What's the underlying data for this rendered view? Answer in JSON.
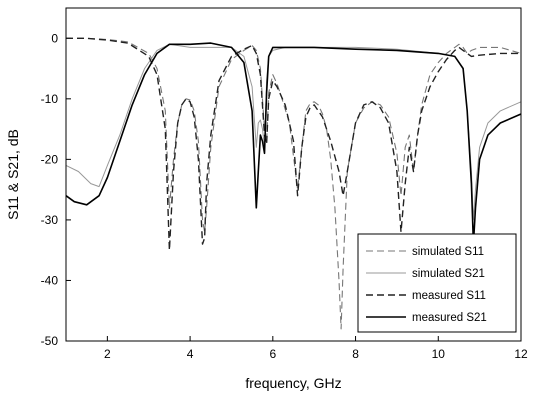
{
  "chart_data": {
    "type": "line",
    "title": "",
    "xlabel": "frequency, GHz",
    "ylabel": "S11 & S21, dB",
    "xlim": [
      1,
      12
    ],
    "ylim": [
      -50,
      5
    ],
    "xticks": [
      2,
      4,
      6,
      8,
      10,
      12
    ],
    "yticks": [
      0,
      -10,
      -20,
      -30,
      -40,
      -50
    ],
    "grid": false,
    "legend_position": "bottom-right",
    "series": [
      {
        "name": "simulated S11",
        "color": "#777777",
        "dash": "dashed",
        "x": [
          1.0,
          1.5,
          2.0,
          2.5,
          3.0,
          3.2,
          3.4,
          3.5,
          3.6,
          3.7,
          3.8,
          3.9,
          4.0,
          4.1,
          4.2,
          4.3,
          4.35,
          4.4,
          4.5,
          4.7,
          5.0,
          5.3,
          5.5,
          5.6,
          5.7,
          5.8,
          5.85,
          5.9,
          6.0,
          6.1,
          6.2,
          6.4,
          6.6,
          6.7,
          6.8,
          6.9,
          7.0,
          7.1,
          7.2,
          7.3,
          7.4,
          7.5,
          7.6,
          7.65,
          7.7,
          7.8,
          8.0,
          8.2,
          8.4,
          8.6,
          8.8,
          9.0,
          9.1,
          9.2,
          9.3,
          9.4,
          9.5,
          9.6,
          9.8,
          10.0,
          10.2,
          10.4,
          10.5,
          10.6,
          10.7,
          10.8,
          11.0,
          11.5,
          12.0
        ],
        "y": [
          0.0,
          0.0,
          -0.2,
          -0.6,
          -2.5,
          -5.0,
          -12.0,
          -28.0,
          -20.0,
          -14.0,
          -11.0,
          -10.0,
          -10.2,
          -12.0,
          -17.0,
          -30.0,
          -32.0,
          -28.0,
          -18.0,
          -8.0,
          -3.5,
          -2.0,
          -1.2,
          -2.0,
          -5.0,
          -15.0,
          -17.0,
          -9.0,
          -6.0,
          -7.5,
          -9.5,
          -14.0,
          -25.0,
          -18.0,
          -12.0,
          -10.8,
          -10.5,
          -11.0,
          -12.5,
          -15.0,
          -20.0,
          -28.0,
          -40.0,
          -48.0,
          -38.0,
          -22.0,
          -14.0,
          -11.5,
          -10.5,
          -11.0,
          -13.0,
          -19.0,
          -26.0,
          -18.0,
          -16.0,
          -22.0,
          -16.0,
          -11.0,
          -6.0,
          -4.0,
          -2.5,
          -1.5,
          -1.0,
          -1.5,
          -2.5,
          -2.0,
          -1.5,
          -1.5,
          -2.5
        ]
      },
      {
        "name": "simulated S21",
        "color": "#999999",
        "dash": "solid",
        "x": [
          1.0,
          1.3,
          1.6,
          1.8,
          2.0,
          2.3,
          2.6,
          2.9,
          3.2,
          3.5,
          4.0,
          4.5,
          5.0,
          5.3,
          5.5,
          5.6,
          5.65,
          5.7,
          5.75,
          5.8,
          5.85,
          5.9,
          6.0,
          6.3,
          7.0,
          8.0,
          9.0,
          10.0,
          10.4,
          10.6,
          10.7,
          10.8,
          10.85,
          10.9,
          11.0,
          11.2,
          11.5,
          12.0
        ],
        "y": [
          -21.0,
          -22.0,
          -24.0,
          -24.5,
          -21.0,
          -16.0,
          -10.0,
          -5.0,
          -2.0,
          -1.0,
          -1.5,
          -1.5,
          -1.5,
          -3.0,
          -8.0,
          -18.0,
          -14.0,
          -13.5,
          -15.0,
          -18.0,
          -7.0,
          -3.0,
          -2.0,
          -1.5,
          -1.5,
          -1.5,
          -1.8,
          -2.5,
          -3.0,
          -5.0,
          -12.0,
          -22.0,
          -30.0,
          -25.0,
          -18.0,
          -14.0,
          -12.0,
          -10.5
        ]
      },
      {
        "name": "measured S11",
        "color": "#222222",
        "dash": "dashed",
        "x": [
          1.0,
          1.5,
          2.0,
          2.5,
          3.0,
          3.2,
          3.4,
          3.5,
          3.6,
          3.7,
          3.8,
          3.9,
          4.0,
          4.1,
          4.2,
          4.3,
          4.35,
          4.4,
          4.5,
          4.7,
          5.0,
          5.3,
          5.5,
          5.6,
          5.7,
          5.8,
          5.85,
          5.9,
          6.0,
          6.1,
          6.3,
          6.5,
          6.6,
          6.7,
          6.8,
          6.9,
          7.0,
          7.2,
          7.4,
          7.6,
          7.7,
          7.8,
          8.0,
          8.2,
          8.4,
          8.6,
          8.8,
          9.0,
          9.1,
          9.2,
          9.3,
          9.4,
          9.5,
          9.6,
          9.8,
          10.0,
          10.2,
          10.4,
          10.5,
          10.6,
          10.8,
          11.0,
          11.5,
          12.0
        ],
        "y": [
          0.0,
          0.0,
          -0.3,
          -0.8,
          -3.0,
          -6.0,
          -15.0,
          -35.0,
          -22.0,
          -14.0,
          -11.0,
          -10.0,
          -10.5,
          -13.0,
          -20.0,
          -34.0,
          -33.0,
          -24.0,
          -16.0,
          -7.0,
          -3.0,
          -1.8,
          -1.2,
          -2.5,
          -6.0,
          -16.0,
          -17.5,
          -10.0,
          -7.0,
          -8.0,
          -11.0,
          -17.0,
          -26.0,
          -18.0,
          -13.0,
          -11.5,
          -11.0,
          -13.0,
          -17.0,
          -22.0,
          -26.0,
          -22.0,
          -14.0,
          -11.0,
          -10.5,
          -11.5,
          -14.0,
          -22.0,
          -32.0,
          -24.0,
          -18.0,
          -22.0,
          -16.0,
          -12.0,
          -8.0,
          -5.5,
          -3.5,
          -2.0,
          -1.5,
          -2.0,
          -3.0,
          -2.8,
          -2.5,
          -2.5
        ]
      },
      {
        "name": "measured S21",
        "color": "#000000",
        "dash": "solid",
        "x": [
          1.0,
          1.2,
          1.5,
          1.8,
          2.0,
          2.3,
          2.6,
          2.9,
          3.2,
          3.5,
          4.0,
          4.5,
          5.0,
          5.3,
          5.5,
          5.6,
          5.65,
          5.7,
          5.75,
          5.8,
          5.85,
          5.9,
          6.0,
          6.3,
          7.0,
          8.0,
          9.0,
          10.0,
          10.4,
          10.6,
          10.7,
          10.8,
          10.85,
          10.9,
          11.0,
          11.2,
          11.5,
          12.0
        ],
        "y": [
          -26.0,
          -27.0,
          -27.5,
          -26.0,
          -23.0,
          -17.0,
          -11.0,
          -6.0,
          -2.5,
          -1.0,
          -1.0,
          -0.8,
          -1.5,
          -4.0,
          -12.0,
          -28.0,
          -22.0,
          -16.0,
          -17.0,
          -19.0,
          -9.0,
          -3.0,
          -1.5,
          -1.5,
          -1.5,
          -1.8,
          -2.0,
          -2.5,
          -3.0,
          -5.0,
          -12.0,
          -24.0,
          -34.0,
          -28.0,
          -20.0,
          -16.0,
          -14.0,
          -12.5
        ]
      }
    ]
  }
}
